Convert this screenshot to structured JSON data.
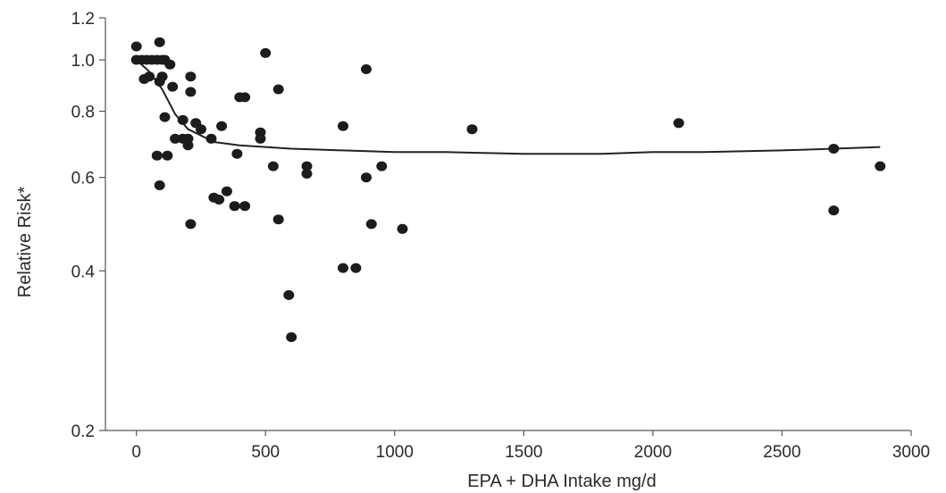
{
  "chart_data": {
    "type": "scatter",
    "xlabel": "EPA + DHA Intake mg/d",
    "ylabel": "Relative Risk*",
    "xlim": [
      -120,
      3000
    ],
    "ylim": [
      0.2,
      1.2
    ],
    "y_scale": "log",
    "grid": false,
    "x_ticks": [
      0,
      500,
      1000,
      1500,
      2000,
      2500,
      3000
    ],
    "y_ticks": [
      0.2,
      0.4,
      0.6,
      0.8,
      1.0,
      1.2
    ],
    "x_tick_labels": [
      "0",
      "500",
      "1000",
      "1500",
      "2000",
      "2500",
      "3000"
    ],
    "y_tick_labels": [
      "0.2",
      "0.4",
      "0.6",
      "0.8",
      "1.0",
      "1.2"
    ],
    "series": [
      {
        "type": "scatter",
        "points": [
          [
            0,
            1.06
          ],
          [
            0,
            1.0
          ],
          [
            20,
            1.0
          ],
          [
            30,
            0.92
          ],
          [
            40,
            1.0
          ],
          [
            50,
            0.93
          ],
          [
            60,
            1.0
          ],
          [
            80,
            1.0
          ],
          [
            90,
            1.08
          ],
          [
            80,
            0.66
          ],
          [
            90,
            0.58
          ],
          [
            90,
            0.91
          ],
          [
            100,
            1.0
          ],
          [
            100,
            0.93
          ],
          [
            110,
            0.78
          ],
          [
            110,
            1.0
          ],
          [
            120,
            0.66
          ],
          [
            130,
            0.98
          ],
          [
            140,
            0.89
          ],
          [
            150,
            0.71
          ],
          [
            180,
            0.77
          ],
          [
            180,
            0.71
          ],
          [
            200,
            0.71
          ],
          [
            200,
            0.69
          ],
          [
            210,
            0.93
          ],
          [
            210,
            0.87
          ],
          [
            210,
            0.49
          ],
          [
            230,
            0.76
          ],
          [
            250,
            0.74
          ],
          [
            290,
            0.71
          ],
          [
            300,
            0.55
          ],
          [
            320,
            0.545
          ],
          [
            330,
            0.75
          ],
          [
            350,
            0.565
          ],
          [
            380,
            0.53
          ],
          [
            390,
            0.665
          ],
          [
            400,
            0.85
          ],
          [
            420,
            0.85
          ],
          [
            420,
            0.53
          ],
          [
            480,
            0.73
          ],
          [
            480,
            0.71
          ],
          [
            500,
            1.03
          ],
          [
            530,
            0.63
          ],
          [
            550,
            0.88
          ],
          [
            550,
            0.5
          ],
          [
            590,
            0.36
          ],
          [
            600,
            0.3
          ],
          [
            660,
            0.63
          ],
          [
            660,
            0.61
          ],
          [
            800,
            0.405
          ],
          [
            800,
            0.75
          ],
          [
            850,
            0.405
          ],
          [
            890,
            0.96
          ],
          [
            890,
            0.6
          ],
          [
            910,
            0.49
          ],
          [
            950,
            0.63
          ],
          [
            1030,
            0.48
          ],
          [
            1300,
            0.74
          ],
          [
            2100,
            0.76
          ],
          [
            2700,
            0.68
          ],
          [
            2700,
            0.52
          ],
          [
            2880,
            0.63
          ]
        ]
      },
      {
        "type": "line",
        "points": [
          [
            0,
            1.0
          ],
          [
            50,
            0.95
          ],
          [
            100,
            0.88
          ],
          [
            150,
            0.79
          ],
          [
            200,
            0.74
          ],
          [
            250,
            0.72
          ],
          [
            300,
            0.7
          ],
          [
            400,
            0.69
          ],
          [
            500,
            0.685
          ],
          [
            600,
            0.68
          ],
          [
            800,
            0.675
          ],
          [
            1000,
            0.67
          ],
          [
            1200,
            0.67
          ],
          [
            1500,
            0.665
          ],
          [
            1800,
            0.665
          ],
          [
            2000,
            0.67
          ],
          [
            2200,
            0.67
          ],
          [
            2500,
            0.675
          ],
          [
            2700,
            0.68
          ],
          [
            2880,
            0.685
          ]
        ]
      }
    ]
  }
}
